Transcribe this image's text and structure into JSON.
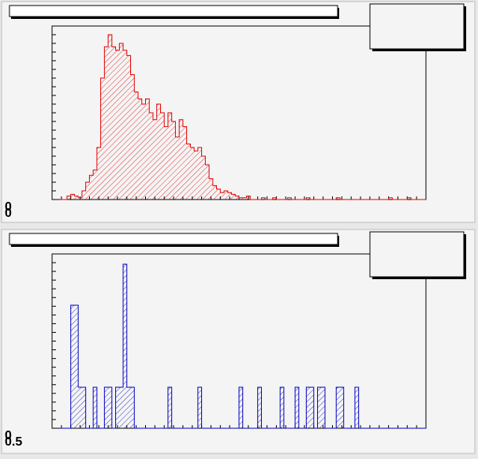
{
  "chart_data": [
    {
      "type": "histogram",
      "color": "#e00000",
      "bins": [
        0,
        1,
        2,
        3,
        4,
        5,
        6,
        7,
        8,
        9,
        10,
        11,
        12,
        13,
        14,
        15,
        16,
        17,
        18,
        19,
        20,
        21,
        22,
        23,
        24,
        25,
        26,
        27,
        28,
        29,
        30,
        31,
        32,
        33,
        34,
        35,
        36,
        37,
        38,
        39,
        40,
        41,
        42,
        43,
        44,
        45,
        46,
        47,
        48,
        49,
        50,
        51,
        52,
        53,
        54,
        55,
        56,
        57,
        58,
        59,
        60,
        61,
        62,
        63,
        64,
        65,
        66,
        67,
        68,
        69,
        70,
        71,
        72,
        73,
        74,
        75,
        76,
        77,
        78,
        79,
        80,
        81,
        82,
        83,
        84,
        85,
        86,
        87,
        88,
        89,
        90,
        91,
        92,
        93,
        94,
        95,
        96,
        97,
        98,
        99,
        100
      ],
      "values": [
        0,
        0,
        0,
        0,
        2,
        3,
        2,
        1,
        5,
        10,
        14,
        17,
        30,
        70,
        88,
        95,
        88,
        86,
        90,
        86,
        83,
        72,
        62,
        58,
        55,
        58,
        50,
        46,
        55,
        50,
        42,
        50,
        45,
        36,
        46,
        42,
        32,
        30,
        28,
        30,
        25,
        20,
        12,
        8,
        6,
        4,
        5,
        4,
        3,
        2,
        1,
        1,
        2,
        0,
        0,
        0,
        1,
        0,
        0,
        1,
        0,
        0,
        0,
        1,
        0,
        0,
        0,
        0,
        1,
        0,
        0,
        0,
        0,
        0,
        0,
        0,
        1,
        0,
        0,
        0,
        0,
        0,
        0,
        0,
        0,
        0,
        0,
        0,
        0,
        0,
        1,
        0,
        0,
        0,
        0,
        1,
        0,
        0,
        0,
        0
      ],
      "xlim": [
        0,
        100
      ],
      "ylim": [
        0,
        100
      ],
      "xticks": [
        0
      ],
      "yticks": [
        0
      ]
    },
    {
      "type": "histogram",
      "color": "#0000c0",
      "bins": [
        0.5,
        1.5,
        2.5,
        3.5,
        4.5,
        5.5,
        6.5,
        7.5,
        8.5,
        9.5,
        10.5,
        11.5,
        12.5,
        13.5,
        14.5,
        15.5,
        16.5,
        17.5,
        18.5,
        19.5,
        20.5,
        21.5,
        22.5,
        23.5,
        24.5,
        25.5,
        26.5,
        27.5,
        28.5,
        29.5,
        30.5,
        31.5,
        32.5,
        33.5,
        34.5,
        35.5,
        36.5,
        37.5,
        38.5,
        39.5,
        40.5,
        41.5,
        42.5,
        43.5,
        44.5,
        45.5,
        46.5,
        47.5,
        48.5,
        49.5,
        50.5,
        51.5,
        52.5,
        53.5,
        54.5,
        55.5,
        56.5,
        57.5,
        58.5,
        59.5,
        60.5,
        61.5,
        62.5,
        63.5,
        64.5,
        65.5,
        66.5,
        67.5,
        68.5,
        69.5,
        70.5,
        71.5,
        72.5,
        73.5,
        74.5,
        75.5,
        76.5,
        77.5,
        78.5,
        79.5,
        80.5,
        81.5,
        82.5,
        83.5,
        84.5,
        85.5,
        86.5,
        87.5,
        88.5,
        89.5,
        90.5,
        91.5,
        92.5,
        93.5,
        94.5,
        95.5,
        96.5,
        97.5,
        98.5,
        99.5,
        100.5
      ],
      "values": [
        0,
        0,
        0,
        0,
        0,
        3,
        3,
        1,
        1,
        0,
        0,
        1,
        0,
        0,
        1,
        1,
        0,
        1,
        1,
        4,
        1,
        1,
        0,
        0,
        0,
        0,
        0,
        0,
        0,
        0,
        0,
        1,
        0,
        0,
        0,
        0,
        0,
        0,
        0,
        1,
        0,
        0,
        0,
        0,
        0,
        0,
        0,
        0,
        0,
        0,
        1,
        0,
        0,
        0,
        0,
        1,
        0,
        0,
        0,
        0,
        0,
        1,
        0,
        0,
        0,
        1,
        0,
        0,
        1,
        1,
        0,
        1,
        1,
        0,
        0,
        0,
        1,
        1,
        0,
        0,
        0,
        1,
        0,
        0,
        0,
        0,
        0,
        0,
        0,
        0,
        0,
        0,
        0,
        0,
        0,
        0,
        0,
        0,
        0,
        0
      ],
      "xlim": [
        0.5,
        100.5
      ],
      "ylim": [
        0,
        4.25
      ],
      "xticks": [
        0.5
      ],
      "yticks": [
        0
      ]
    }
  ]
}
